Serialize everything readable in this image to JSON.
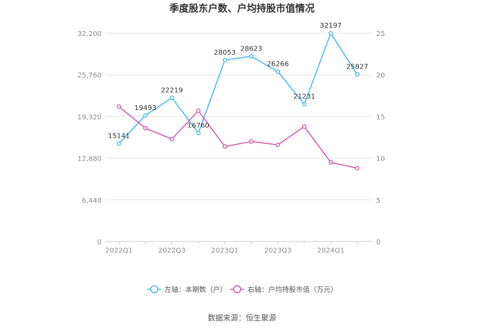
{
  "title": "季度股东户数、户均持股市值情况",
  "source": "数据来源：恒生聚源",
  "chart_data": {
    "type": "line",
    "x": [
      "2022Q1",
      "2022Q2",
      "2022Q3",
      "2022Q4",
      "2023Q1",
      "2023Q2",
      "2023Q3",
      "2023Q4",
      "2024Q1",
      "2024Q2"
    ],
    "x_tick_labels": [
      "2022Q1",
      "2022Q3",
      "2023Q1",
      "2023Q3",
      "2024Q1"
    ],
    "left_axis": {
      "ylim": [
        0,
        32200
      ],
      "ticks": [
        "0",
        "6,440",
        "12,880",
        "19,320",
        "25,760",
        "32,200"
      ]
    },
    "right_axis": {
      "ylim": [
        0,
        25
      ],
      "ticks": [
        "0",
        "5",
        "10",
        "15",
        "20",
        "25"
      ]
    },
    "series": [
      {
        "name": "左轴：本期数（户）",
        "axis": "left",
        "color": "#4dbbea",
        "values": [
          15141,
          19493,
          22219,
          16760,
          28053,
          28623,
          26266,
          21231,
          32197,
          25827
        ],
        "labels": [
          "15141",
          "19493",
          "22219",
          "16760",
          "28053",
          "28623",
          "26266",
          "21231",
          "32197",
          "25827"
        ]
      },
      {
        "name": "右轴：户均持股市值（万元）",
        "axis": "right",
        "color": "#d45fac",
        "values": [
          16.2,
          13.6,
          12.3,
          15.7,
          11.4,
          12.0,
          11.6,
          13.8,
          9.5,
          8.8
        ]
      }
    ],
    "grid": true,
    "legend_position": "bottom"
  }
}
